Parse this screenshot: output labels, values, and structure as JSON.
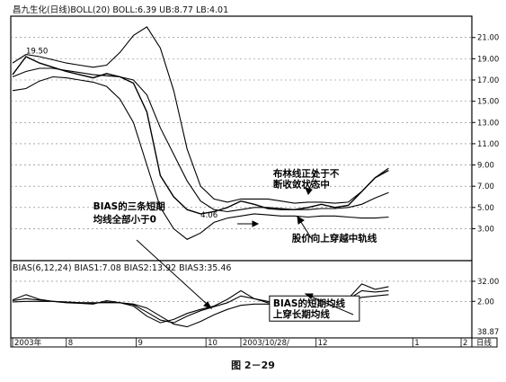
{
  "figure_caption": "图 2－29",
  "chart_data": [
    {
      "type": "line",
      "panel": "price",
      "header": "昌九生化(日线)BOLL(20) BOLL:6.39 UB:8.77 LB:4.01",
      "ylim": [
        0.5,
        22.5
      ],
      "y_ticks": [
        3.0,
        5.0,
        7.0,
        9.0,
        11.0,
        13.0,
        15.0,
        17.0,
        19.0,
        21.0
      ],
      "y_tick_labels": [
        "3.00",
        "5.00",
        "7.00",
        "9.00",
        "11.00",
        "13.00",
        "15.00",
        "17.00",
        "19.00",
        "21.00"
      ],
      "x": [
        0,
        5,
        10,
        15,
        20,
        25,
        30,
        35,
        40,
        45,
        50,
        55,
        60,
        65,
        70,
        75,
        80,
        85,
        90,
        95,
        100,
        105,
        110,
        115,
        120,
        125,
        130,
        135,
        140
      ],
      "series": [
        {
          "values": [
            17.5,
            19.2,
            18.6,
            18.2,
            17.8,
            17.5,
            17.2,
            17.6,
            17.3,
            16.7,
            14.0,
            8.0,
            6.0,
            4.8,
            4.4,
            4.6,
            5.0,
            5.6,
            5.3,
            4.9,
            4.8,
            4.8,
            5.0,
            5.3,
            5.0,
            5.2,
            6.5,
            7.8,
            8.5
          ]
        },
        {
          "values": [
            17.3,
            17.8,
            18.1,
            18.1,
            17.9,
            17.7,
            17.5,
            17.4,
            17.3,
            17.0,
            15.6,
            12.5,
            10.0,
            7.5,
            5.6,
            4.8,
            4.6,
            4.8,
            5.0,
            5.0,
            4.9,
            4.8,
            4.8,
            4.9,
            4.9,
            5.0,
            5.3,
            5.9,
            6.4
          ]
        },
        {
          "values": [
            18.6,
            19.4,
            19.2,
            18.9,
            18.6,
            18.4,
            18.2,
            18.4,
            19.6,
            21.2,
            22.0,
            20.0,
            16.0,
            10.5,
            7.0,
            5.8,
            5.5,
            5.8,
            5.8,
            5.8,
            5.6,
            5.4,
            5.5,
            5.5,
            5.4,
            5.5,
            6.5,
            7.8,
            8.7
          ]
        },
        {
          "values": [
            16.0,
            16.2,
            16.9,
            17.3,
            17.2,
            17.0,
            16.8,
            16.4,
            15.2,
            13.0,
            9.0,
            5.0,
            3.0,
            2.0,
            2.6,
            3.6,
            4.0,
            4.2,
            4.4,
            4.3,
            4.2,
            4.2,
            4.1,
            4.2,
            4.2,
            4.1,
            4.0,
            4.0,
            4.1
          ]
        }
      ],
      "annotations": [
        {
          "text": "19.50",
          "x": 5,
          "y": 19.5
        },
        {
          "text": "4.06",
          "x": 70,
          "y": 4.06
        },
        {
          "text": "布林线正处于不",
          "x": 97,
          "y": 7.9
        },
        {
          "text": "断收敛状态中",
          "x": 97,
          "y": 6.9
        },
        {
          "text": "股价向上穿越中轨线",
          "x": 104,
          "y": 1.8
        },
        {
          "text": "BIAS的三条短期",
          "x": 30,
          "y": 4.8
        },
        {
          "text": "均线全部小于0",
          "x": 30,
          "y": 3.6
        }
      ]
    },
    {
      "type": "line",
      "panel": "indicator",
      "header": "BIAS(6,12,24) BIAS1:7.08 BIAS2:13.92 BIAS3:35.46",
      "ylim": [
        -50,
        44
      ],
      "y_ticks": [
        32.0,
        2.0
      ],
      "y_tick_labels": [
        "32.00",
        "2.00"
      ],
      "y_extra_label": "38.87",
      "x": [
        0,
        5,
        10,
        15,
        20,
        25,
        30,
        35,
        40,
        45,
        50,
        55,
        60,
        65,
        70,
        75,
        80,
        85,
        90,
        95,
        100,
        105,
        110,
        115,
        120,
        125,
        130,
        135,
        140
      ],
      "series": [
        {
          "values": [
            4,
            12,
            5,
            2,
            0,
            -1,
            -2,
            3,
            0,
            -5,
            -20,
            -30,
            -25,
            -16,
            -10,
            -5,
            5,
            18,
            6,
            0,
            -2,
            0,
            5,
            8,
            0,
            6,
            28,
            20,
            24
          ]
        },
        {
          "values": [
            3,
            6,
            4,
            2,
            1,
            0,
            -1,
            1,
            0,
            -3,
            -14,
            -26,
            -30,
            -20,
            -12,
            -6,
            0,
            10,
            6,
            2,
            0,
            0,
            3,
            6,
            2,
            5,
            18,
            16,
            18
          ]
        },
        {
          "values": [
            1,
            2,
            2,
            2,
            1,
            0,
            0,
            0,
            0,
            -2,
            -8,
            -20,
            -32,
            -36,
            -28,
            -18,
            -10,
            -4,
            -2,
            -2,
            -4,
            -2,
            0,
            2,
            2,
            3,
            8,
            10,
            12
          ]
        }
      ],
      "annotations": [
        {
          "text": "BIAS的短期均线",
          "x": 97,
          "y": -6
        },
        {
          "text": "上穿长期均线",
          "x": 97,
          "y": -22
        }
      ]
    }
  ],
  "x_axis": {
    "tick_labels": [
      "2003年",
      "8",
      "9",
      "10",
      "2003/10/28/",
      "12",
      "1",
      "2"
    ],
    "tick_positions": [
      0,
      20,
      46,
      72,
      85,
      113,
      149,
      167
    ],
    "right_label": "日线"
  }
}
